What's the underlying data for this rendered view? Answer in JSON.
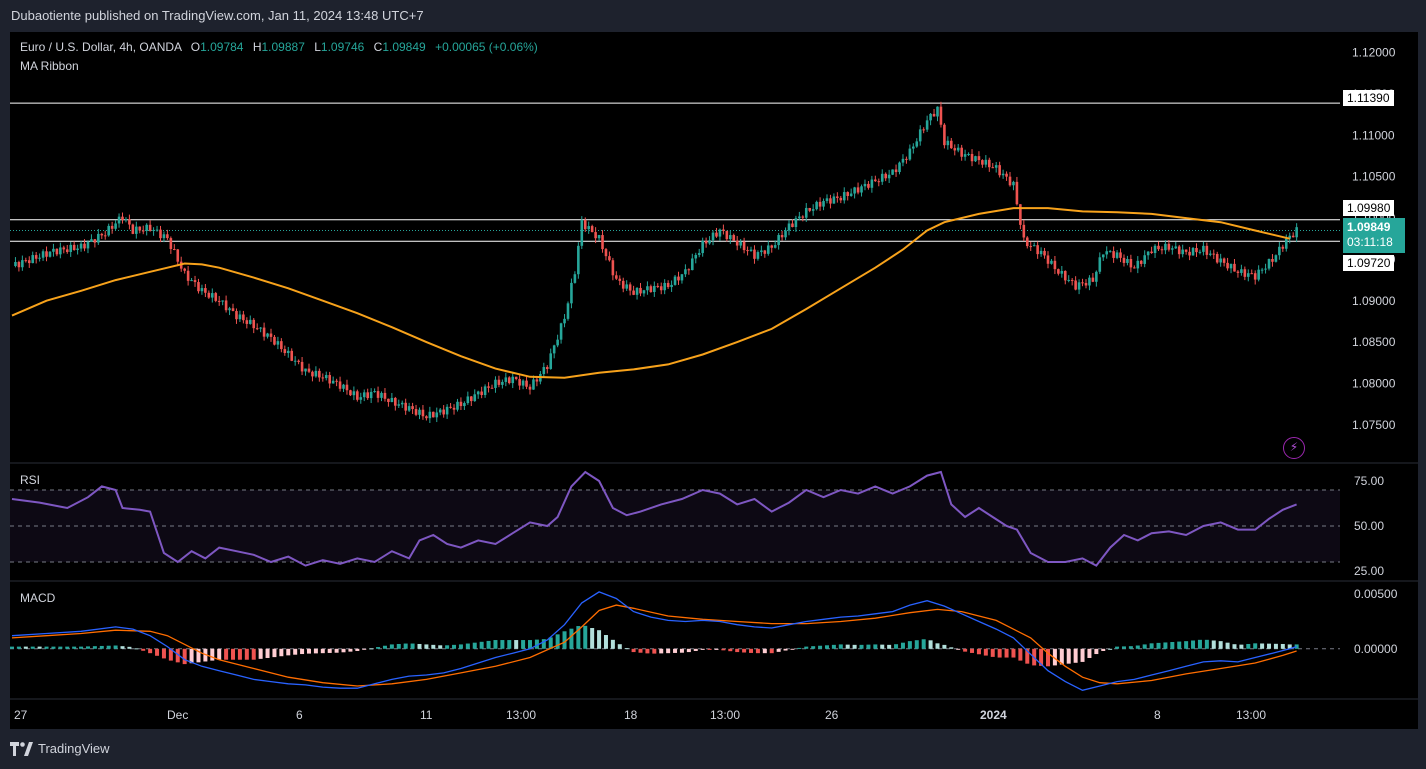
{
  "header": {
    "published": "Dubaotiente published on TradingView.com, Jan 11, 2024 13:48 UTC+7"
  },
  "legend": {
    "symbol": "Euro / U.S. Dollar, 4h, OANDA",
    "o_label": "O",
    "o": "1.09784",
    "h_label": "H",
    "h": "1.09887",
    "l_label": "L",
    "l": "1.09746",
    "c_label": "C",
    "c": "1.09849",
    "change": "+0.00065 (+0.06%)",
    "indicator": "MA Ribbon"
  },
  "panes": {
    "rsi_label": "RSI",
    "macd_label": "MACD"
  },
  "price_tags": {
    "level_top": "1.11390",
    "level_mid": "1.09980",
    "last": "1.09849",
    "countdown": "03:11:18",
    "level_low": "1.09720"
  },
  "footer": {
    "brand": "TradingView"
  },
  "colors": {
    "up": "#26a69a",
    "down": "#ef5350",
    "ma": "#f7a21b",
    "rsi": "#7e57c2",
    "macd": "#2962ff",
    "signal": "#ff6d00",
    "background": "#000000"
  },
  "chart_data": [
    {
      "type": "candlestick",
      "title": "Euro / U.S. Dollar, 4h, OANDA",
      "x_ticks": [
        "27",
        "Dec",
        "6",
        "11",
        "13:00",
        "18",
        "13:00",
        "26",
        "2024",
        "8",
        "13:00"
      ],
      "y_ticks": [
        "1.12000",
        "1.11500",
        "1.11000",
        "1.10500",
        "1.10000",
        "1.09500",
        "1.09000",
        "1.08500",
        "1.08000",
        "1.07500"
      ],
      "ylim": [
        1.0705,
        1.1225
      ],
      "horizontal_levels": [
        1.1139,
        1.0998,
        1.0972
      ],
      "close_path": [
        [
          0,
          1.0942
        ],
        [
          12,
          1.096
        ],
        [
          20,
          1.0965
        ],
        [
          27,
          1.0982
        ],
        [
          32,
          1.1002
        ],
        [
          35,
          1.0985
        ],
        [
          40,
          1.0988
        ],
        [
          45,
          1.0975
        ],
        [
          50,
          1.0932
        ],
        [
          55,
          1.0912
        ],
        [
          60,
          1.09
        ],
        [
          65,
          1.0882
        ],
        [
          70,
          1.087
        ],
        [
          75,
          1.0855
        ],
        [
          80,
          1.0835
        ],
        [
          85,
          1.0815
        ],
        [
          90,
          1.0808
        ],
        [
          95,
          1.0798
        ],
        [
          100,
          1.0783
        ],
        [
          105,
          1.0789
        ],
        [
          110,
          1.0778
        ],
        [
          115,
          1.077
        ],
        [
          120,
          1.076
        ],
        [
          125,
          1.0767
        ],
        [
          130,
          1.0775
        ],
        [
          135,
          1.0788
        ],
        [
          140,
          1.08
        ],
        [
          145,
          1.0806
        ],
        [
          150,
          1.0795
        ],
        [
          155,
          1.0822
        ],
        [
          160,
          1.088
        ],
        [
          163,
          1.0936
        ],
        [
          165,
          1.0995
        ],
        [
          170,
          1.0975
        ],
        [
          175,
          1.0925
        ],
        [
          180,
          1.091
        ],
        [
          185,
          1.0915
        ],
        [
          190,
          1.0918
        ],
        [
          195,
          1.0935
        ],
        [
          200,
          1.0968
        ],
        [
          205,
          1.0985
        ],
        [
          210,
          1.097
        ],
        [
          215,
          1.0955
        ],
        [
          220,
          1.0965
        ],
        [
          225,
          1.099
        ],
        [
          230,
          1.1008
        ],
        [
          235,
          1.102
        ],
        [
          240,
          1.1025
        ],
        [
          245,
          1.1035
        ],
        [
          250,
          1.1045
        ],
        [
          255,
          1.1055
        ],
        [
          260,
          1.108
        ],
        [
          265,
          1.1118
        ],
        [
          268,
          1.1132
        ],
        [
          270,
          1.1092
        ],
        [
          275,
          1.1078
        ],
        [
          280,
          1.107
        ],
        [
          285,
          1.106
        ],
        [
          290,
          1.104
        ],
        [
          293,
          1.0972
        ],
        [
          298,
          1.0958
        ],
        [
          303,
          1.0935
        ],
        [
          308,
          1.0918
        ],
        [
          313,
          1.0925
        ],
        [
          316,
          1.096
        ],
        [
          320,
          1.0955
        ],
        [
          325,
          1.094
        ],
        [
          330,
          1.0962
        ],
        [
          335,
          1.0965
        ],
        [
          340,
          1.0958
        ],
        [
          345,
          1.0962
        ],
        [
          350,
          1.0948
        ],
        [
          355,
          1.0935
        ],
        [
          360,
          1.093
        ],
        [
          365,
          1.095
        ],
        [
          369,
          1.0973
        ],
        [
          372,
          1.0985
        ]
      ],
      "ma_path": [
        [
          0,
          1.0882
        ],
        [
          10,
          1.09
        ],
        [
          20,
          1.0912
        ],
        [
          30,
          1.0925
        ],
        [
          40,
          1.0935
        ],
        [
          45,
          1.094
        ],
        [
          50,
          1.0945
        ],
        [
          55,
          1.0944
        ],
        [
          60,
          1.094
        ],
        [
          70,
          1.0928
        ],
        [
          80,
          1.0915
        ],
        [
          90,
          1.09
        ],
        [
          100,
          1.0885
        ],
        [
          110,
          1.0868
        ],
        [
          120,
          1.085
        ],
        [
          130,
          1.0833
        ],
        [
          140,
          1.0818
        ],
        [
          150,
          1.0808
        ],
        [
          160,
          1.0807
        ],
        [
          170,
          1.0813
        ],
        [
          180,
          1.0817
        ],
        [
          190,
          1.0823
        ],
        [
          200,
          1.0835
        ],
        [
          210,
          1.085
        ],
        [
          220,
          1.0866
        ],
        [
          230,
          1.089
        ],
        [
          240,
          1.0915
        ],
        [
          250,
          1.094
        ],
        [
          258,
          1.0962
        ],
        [
          265,
          1.0985
        ],
        [
          270,
          1.0995
        ],
        [
          280,
          1.1005
        ],
        [
          290,
          1.1012
        ],
        [
          300,
          1.1012
        ],
        [
          310,
          1.1008
        ],
        [
          320,
          1.1007
        ],
        [
          330,
          1.1005
        ],
        [
          340,
          1.1
        ],
        [
          350,
          1.0995
        ],
        [
          360,
          1.0985
        ],
        [
          370,
          1.0975
        ]
      ]
    },
    {
      "type": "line",
      "title": "RSI",
      "y_ticks": [
        "75.00",
        "50.00",
        "25.00"
      ],
      "ylim": [
        20,
        85
      ],
      "bands": [
        30,
        50,
        70
      ],
      "values": [
        [
          0,
          65
        ],
        [
          8,
          63
        ],
        [
          16,
          60
        ],
        [
          22,
          66
        ],
        [
          26,
          72
        ],
        [
          30,
          70
        ],
        [
          32,
          60
        ],
        [
          37,
          59
        ],
        [
          40,
          58
        ],
        [
          44,
          35
        ],
        [
          48,
          30
        ],
        [
          52,
          36
        ],
        [
          56,
          32
        ],
        [
          60,
          38
        ],
        [
          65,
          36
        ],
        [
          70,
          34
        ],
        [
          75,
          30
        ],
        [
          80,
          33
        ],
        [
          85,
          28
        ],
        [
          90,
          31
        ],
        [
          95,
          29
        ],
        [
          100,
          32
        ],
        [
          105,
          30
        ],
        [
          110,
          36
        ],
        [
          115,
          32
        ],
        [
          118,
          42
        ],
        [
          122,
          45
        ],
        [
          126,
          40
        ],
        [
          130,
          38
        ],
        [
          135,
          42
        ],
        [
          140,
          40
        ],
        [
          145,
          46
        ],
        [
          150,
          52
        ],
        [
          155,
          50
        ],
        [
          158,
          55
        ],
        [
          162,
          72
        ],
        [
          166,
          80
        ],
        [
          170,
          75
        ],
        [
          174,
          60
        ],
        [
          178,
          56
        ],
        [
          182,
          58
        ],
        [
          188,
          62
        ],
        [
          194,
          65
        ],
        [
          200,
          70
        ],
        [
          205,
          68
        ],
        [
          210,
          62
        ],
        [
          215,
          65
        ],
        [
          220,
          58
        ],
        [
          225,
          63
        ],
        [
          230,
          70
        ],
        [
          235,
          66
        ],
        [
          240,
          70
        ],
        [
          245,
          68
        ],
        [
          250,
          72
        ],
        [
          255,
          68
        ],
        [
          260,
          72
        ],
        [
          265,
          78
        ],
        [
          269,
          80
        ],
        [
          272,
          62
        ],
        [
          276,
          55
        ],
        [
          280,
          60
        ],
        [
          284,
          55
        ],
        [
          288,
          50
        ],
        [
          291,
          48
        ],
        [
          295,
          35
        ],
        [
          300,
          30
        ],
        [
          305,
          30
        ],
        [
          310,
          32
        ],
        [
          314,
          28
        ],
        [
          318,
          38
        ],
        [
          322,
          45
        ],
        [
          326,
          42
        ],
        [
          330,
          46
        ],
        [
          335,
          47
        ],
        [
          340,
          45
        ],
        [
          345,
          50
        ],
        [
          350,
          52
        ],
        [
          355,
          48
        ],
        [
          360,
          48
        ],
        [
          364,
          54
        ],
        [
          368,
          59
        ],
        [
          372,
          62
        ]
      ]
    },
    {
      "type": "histogram+line",
      "title": "MACD",
      "y_ticks": [
        "0.00500",
        "0.00000"
      ],
      "ylim": [
        -0.0045,
        0.0062
      ],
      "macd": [
        [
          0,
          0.0012
        ],
        [
          10,
          0.0014
        ],
        [
          20,
          0.0016
        ],
        [
          30,
          0.002
        ],
        [
          35,
          0.0018
        ],
        [
          40,
          0.0012
        ],
        [
          45,
          0.0002
        ],
        [
          50,
          -0.001
        ],
        [
          55,
          -0.0016
        ],
        [
          60,
          -0.002
        ],
        [
          65,
          -0.0024
        ],
        [
          70,
          -0.0028
        ],
        [
          75,
          -0.003
        ],
        [
          80,
          -0.0032
        ],
        [
          85,
          -0.0033
        ],
        [
          90,
          -0.0035
        ],
        [
          95,
          -0.0036
        ],
        [
          100,
          -0.0036
        ],
        [
          105,
          -0.0032
        ],
        [
          110,
          -0.0028
        ],
        [
          115,
          -0.0025
        ],
        [
          120,
          -0.0024
        ],
        [
          125,
          -0.0022
        ],
        [
          130,
          -0.0018
        ],
        [
          135,
          -0.0013
        ],
        [
          140,
          -0.0008
        ],
        [
          145,
          -0.0004
        ],
        [
          150,
          0.0
        ],
        [
          155,
          0.0008
        ],
        [
          160,
          0.0022
        ],
        [
          165,
          0.0042
        ],
        [
          170,
          0.0052
        ],
        [
          175,
          0.0046
        ],
        [
          180,
          0.0034
        ],
        [
          185,
          0.0029
        ],
        [
          190,
          0.0026
        ],
        [
          195,
          0.0025
        ],
        [
          200,
          0.0026
        ],
        [
          205,
          0.0025
        ],
        [
          210,
          0.0022
        ],
        [
          215,
          0.002
        ],
        [
          220,
          0.0019
        ],
        [
          225,
          0.0022
        ],
        [
          230,
          0.0025
        ],
        [
          235,
          0.0027
        ],
        [
          240,
          0.0029
        ],
        [
          245,
          0.003
        ],
        [
          250,
          0.0032
        ],
        [
          255,
          0.0034
        ],
        [
          260,
          0.004
        ],
        [
          265,
          0.0044
        ],
        [
          270,
          0.0039
        ],
        [
          275,
          0.0032
        ],
        [
          280,
          0.0025
        ],
        [
          285,
          0.0018
        ],
        [
          290,
          0.001
        ],
        [
          295,
          -0.0005
        ],
        [
          300,
          -0.002
        ],
        [
          305,
          -0.003
        ],
        [
          310,
          -0.0038
        ],
        [
          315,
          -0.0034
        ],
        [
          320,
          -0.003
        ],
        [
          325,
          -0.0028
        ],
        [
          330,
          -0.0024
        ],
        [
          335,
          -0.002
        ],
        [
          340,
          -0.0016
        ],
        [
          345,
          -0.0012
        ],
        [
          350,
          -0.0011
        ],
        [
          355,
          -0.0012
        ],
        [
          360,
          -0.0008
        ],
        [
          365,
          -0.0004
        ],
        [
          370,
          0.0
        ],
        [
          372,
          0.0002
        ]
      ],
      "signal": [
        [
          0,
          0.001
        ],
        [
          10,
          0.0012
        ],
        [
          20,
          0.0014
        ],
        [
          30,
          0.0017
        ],
        [
          40,
          0.0016
        ],
        [
          45,
          0.0012
        ],
        [
          50,
          0.0004
        ],
        [
          55,
          -0.0004
        ],
        [
          60,
          -0.001
        ],
        [
          70,
          -0.0018
        ],
        [
          80,
          -0.0026
        ],
        [
          90,
          -0.0031
        ],
        [
          100,
          -0.0034
        ],
        [
          110,
          -0.0032
        ],
        [
          120,
          -0.0028
        ],
        [
          130,
          -0.0022
        ],
        [
          140,
          -0.0016
        ],
        [
          150,
          -0.0008
        ],
        [
          160,
          0.0006
        ],
        [
          165,
          0.002
        ],
        [
          170,
          0.0035
        ],
        [
          175,
          0.004
        ],
        [
          180,
          0.0037
        ],
        [
          190,
          0.003
        ],
        [
          200,
          0.0027
        ],
        [
          210,
          0.0025
        ],
        [
          220,
          0.0023
        ],
        [
          230,
          0.0023
        ],
        [
          240,
          0.0025
        ],
        [
          250,
          0.0028
        ],
        [
          260,
          0.0033
        ],
        [
          268,
          0.0036
        ],
        [
          275,
          0.0034
        ],
        [
          285,
          0.0026
        ],
        [
          295,
          0.001
        ],
        [
          300,
          -0.0004
        ],
        [
          305,
          -0.0016
        ],
        [
          310,
          -0.0026
        ],
        [
          315,
          -0.0031
        ],
        [
          320,
          -0.0032
        ],
        [
          330,
          -0.0029
        ],
        [
          340,
          -0.0023
        ],
        [
          350,
          -0.0018
        ],
        [
          360,
          -0.0013
        ],
        [
          368,
          -0.0006
        ],
        [
          372,
          -0.0002
        ]
      ]
    }
  ]
}
